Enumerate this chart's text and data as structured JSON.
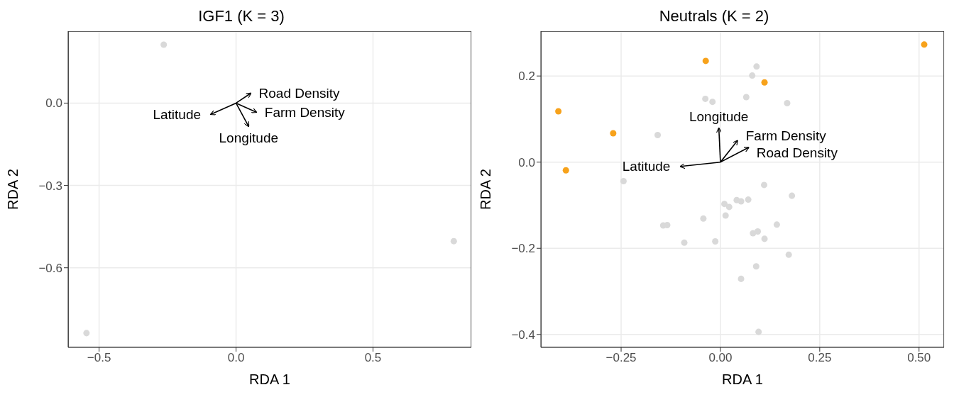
{
  "chart_data": [
    {
      "type": "scatter",
      "title": "IGF1 (K = 3)",
      "xlabel": "RDA 1",
      "ylabel": "RDA 2",
      "xlim": [
        -0.613,
        0.859
      ],
      "ylim": [
        -0.89,
        0.262
      ],
      "xticks": [
        {
          "value": -0.5,
          "label": "−0.5"
        },
        {
          "value": 0,
          "label": "0.0"
        },
        {
          "value": 0.5,
          "label": "0.5"
        }
      ],
      "yticks": [
        {
          "value": -0.6,
          "label": "−0.6"
        },
        {
          "value": -0.3,
          "label": "−0.3"
        },
        {
          "value": 0,
          "label": "0.0"
        }
      ],
      "grid": true,
      "marker": "circle",
      "series": [
        {
          "type": "scatter",
          "color": "#d9d9d9",
          "x": [
            -0.264,
            -0.546,
            0.795
          ],
          "values": [
            0.213,
            -0.838,
            -0.503
          ]
        },
        {
          "type": "line",
          "name": "Road Density",
          "color": "#000000",
          "marker": "none",
          "x": [
            0,
            0.054
          ],
          "values": [
            0,
            0.036
          ]
        },
        {
          "type": "line",
          "name": "Latitude",
          "color": "#000000",
          "marker": "none",
          "x": [
            0,
            -0.092
          ],
          "values": [
            0,
            -0.041
          ]
        },
        {
          "type": "line",
          "name": "Farm Density",
          "color": "#000000",
          "marker": "none",
          "x": [
            0,
            0.074
          ],
          "values": [
            0,
            -0.033
          ]
        },
        {
          "type": "line",
          "name": "Longitude",
          "color": "#000000",
          "marker": "none",
          "x": [
            0,
            0.046
          ],
          "values": [
            0,
            -0.085
          ]
        }
      ]
    },
    {
      "type": "scatter",
      "title": "Neutrals (K = 2)",
      "xlabel": "RDA 1",
      "ylabel": "RDA 2",
      "xlim": [
        -0.452,
        0.563
      ],
      "ylim": [
        -0.43,
        0.304
      ],
      "xticks": [
        {
          "value": -0.25,
          "label": "−0.25"
        },
        {
          "value": 0,
          "label": "0.00"
        },
        {
          "value": 0.25,
          "label": "0.25"
        },
        {
          "value": 0.5,
          "label": "0.50"
        }
      ],
      "yticks": [
        {
          "value": -0.4,
          "label": "−0.4"
        },
        {
          "value": -0.2,
          "label": "−0.2"
        },
        {
          "value": 0,
          "label": "0.0"
        },
        {
          "value": 0.2,
          "label": "0.2"
        }
      ],
      "grid": true,
      "marker": "circle",
      "series": [
        {
          "type": "scatter",
          "color": "#d9d9d9",
          "x": [
            0.091,
            0.08,
            0.065,
            -0.038,
            -0.02,
            0.168,
            -0.158,
            -0.244,
            0.11,
            0.18,
            0.01,
            0.022,
            0.041,
            0.052,
            0.07,
            0.013,
            -0.043,
            -0.144,
            -0.134,
            0.142,
            0.082,
            0.094,
            0.111,
            -0.091,
            -0.013,
            0.172,
            0.09,
            0.052,
            0.096
          ],
          "values": [
            0.222,
            0.201,
            0.151,
            0.147,
            0.14,
            0.137,
            0.063,
            -0.044,
            -0.053,
            -0.078,
            -0.097,
            -0.104,
            -0.088,
            -0.091,
            -0.087,
            -0.124,
            -0.131,
            -0.147,
            -0.146,
            -0.145,
            -0.165,
            -0.161,
            -0.178,
            -0.187,
            -0.184,
            -0.215,
            -0.242,
            -0.271,
            -0.394
          ]
        },
        {
          "type": "scatter",
          "color": "#f7a21b",
          "x": [
            0.513,
            -0.037,
            0.111,
            -0.408,
            -0.27,
            -0.389
          ],
          "values": [
            0.273,
            0.235,
            0.185,
            0.118,
            0.067,
            -0.019
          ]
        },
        {
          "type": "line",
          "name": "Longitude",
          "color": "#000000",
          "marker": "none",
          "x": [
            0,
            -0.004
          ],
          "values": [
            0,
            0.079
          ]
        },
        {
          "type": "line",
          "name": "Farm Density",
          "color": "#000000",
          "marker": "none",
          "x": [
            0,
            0.043
          ],
          "values": [
            0,
            0.05
          ]
        },
        {
          "type": "line",
          "name": "Road Density",
          "color": "#000000",
          "marker": "none",
          "x": [
            0,
            0.071
          ],
          "values": [
            0,
            0.034
          ]
        },
        {
          "type": "line",
          "name": "Latitude",
          "color": "#000000",
          "marker": "none",
          "x": [
            0,
            -0.101
          ],
          "values": [
            0,
            -0.01
          ]
        }
      ]
    }
  ]
}
